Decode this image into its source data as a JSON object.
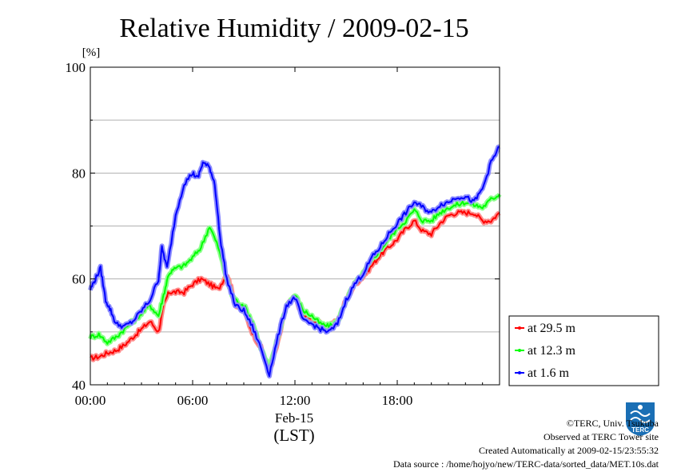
{
  "chart_data": {
    "type": "line",
    "title": "Relative Humidity / 2009-02-15",
    "ylabel": "[%]",
    "xlabel": "(LST)",
    "x_date_label": "Feb-15",
    "xlim": [
      0,
      24
    ],
    "ylim": [
      40,
      100
    ],
    "y_ticks": [
      40,
      60,
      80,
      100
    ],
    "y_tick_labels": [
      "40",
      "60",
      "80",
      "100"
    ],
    "x_ticks": [
      0,
      6,
      12,
      18
    ],
    "x_tick_labels": [
      "00:00",
      "06:00",
      "12:00",
      "18:00"
    ],
    "grid": "horizontal",
    "legend_position": "right",
    "series": [
      {
        "name": "at 29.5 m",
        "color": "#ff0000",
        "points": [
          [
            0,
            45
          ],
          [
            0.5,
            45.3
          ],
          [
            1,
            46
          ],
          [
            1.5,
            46.5
          ],
          [
            2,
            47.5
          ],
          [
            2.5,
            49
          ],
          [
            3,
            50.5
          ],
          [
            3.5,
            52
          ],
          [
            4,
            50
          ],
          [
            4.3,
            55
          ],
          [
            4.6,
            57.5
          ],
          [
            5,
            57.5
          ],
          [
            5.5,
            57.5
          ],
          [
            6,
            59
          ],
          [
            6.5,
            60
          ],
          [
            7,
            59
          ],
          [
            7.5,
            58
          ],
          [
            8,
            61
          ],
          [
            8.2,
            59
          ],
          [
            8.5,
            55
          ],
          [
            9,
            54
          ],
          [
            9.5,
            50
          ],
          [
            10,
            47
          ],
          [
            10.5,
            42.5
          ],
          [
            11,
            48
          ],
          [
            11.5,
            55
          ],
          [
            12,
            56.5
          ],
          [
            12.5,
            53
          ],
          [
            13,
            52.5
          ],
          [
            13.5,
            51.5
          ],
          [
            14,
            51
          ],
          [
            14.5,
            52
          ],
          [
            15,
            56
          ],
          [
            15.5,
            59
          ],
          [
            16,
            60.5
          ],
          [
            16.5,
            62.5
          ],
          [
            17,
            64.5
          ],
          [
            17.5,
            66
          ],
          [
            18,
            67.5
          ],
          [
            18.5,
            69.5
          ],
          [
            19,
            71
          ],
          [
            19.5,
            69
          ],
          [
            20,
            68.5
          ],
          [
            20.5,
            70.5
          ],
          [
            21,
            72
          ],
          [
            21.5,
            72.5
          ],
          [
            22,
            72.5
          ],
          [
            22.5,
            72.5
          ],
          [
            23,
            71
          ],
          [
            23.5,
            71
          ],
          [
            24,
            72.5
          ]
        ]
      },
      {
        "name": "at 12.3 m",
        "color": "#00ff00",
        "points": [
          [
            0,
            49
          ],
          [
            0.5,
            49.5
          ],
          [
            1,
            48
          ],
          [
            1.5,
            49
          ],
          [
            2,
            50.5
          ],
          [
            2.5,
            52
          ],
          [
            3,
            53.5
          ],
          [
            3.5,
            55
          ],
          [
            4,
            53
          ],
          [
            4.3,
            57
          ],
          [
            4.6,
            61
          ],
          [
            5,
            62
          ],
          [
            5.5,
            62.5
          ],
          [
            6,
            64
          ],
          [
            6.5,
            66
          ],
          [
            7,
            70
          ],
          [
            7.5,
            66
          ],
          [
            8,
            60
          ],
          [
            8.3,
            57
          ],
          [
            8.5,
            56
          ],
          [
            9,
            55
          ],
          [
            9.5,
            52
          ],
          [
            10,
            47
          ],
          [
            10.5,
            43
          ],
          [
            11,
            49
          ],
          [
            11.5,
            55
          ],
          [
            12,
            57
          ],
          [
            12.5,
            54
          ],
          [
            13,
            53
          ],
          [
            13.5,
            51.5
          ],
          [
            14,
            51
          ],
          [
            14.5,
            52
          ],
          [
            15,
            56
          ],
          [
            15.5,
            59
          ],
          [
            16,
            61
          ],
          [
            16.5,
            63.5
          ],
          [
            17,
            65.5
          ],
          [
            17.5,
            67.5
          ],
          [
            18,
            69.5
          ],
          [
            18.5,
            71
          ],
          [
            19,
            73
          ],
          [
            19.5,
            71
          ],
          [
            20,
            71
          ],
          [
            20.5,
            72.5
          ],
          [
            21,
            73.5
          ],
          [
            21.5,
            74
          ],
          [
            22,
            74.5
          ],
          [
            22.5,
            74
          ],
          [
            23,
            73.5
          ],
          [
            23.5,
            75
          ],
          [
            24,
            76
          ]
        ]
      },
      {
        "name": "at 1.6 m",
        "color": "#0000ff",
        "points": [
          [
            0,
            58
          ],
          [
            0.3,
            60
          ],
          [
            0.6,
            62
          ],
          [
            0.9,
            56
          ],
          [
            1.2,
            54
          ],
          [
            1.5,
            51.5
          ],
          [
            2,
            51
          ],
          [
            2.5,
            52
          ],
          [
            3,
            54
          ],
          [
            3.5,
            56
          ],
          [
            4,
            60
          ],
          [
            4.2,
            66
          ],
          [
            4.5,
            62
          ],
          [
            5,
            72
          ],
          [
            5.5,
            78
          ],
          [
            6,
            80
          ],
          [
            6.3,
            79
          ],
          [
            6.6,
            82
          ],
          [
            7,
            81
          ],
          [
            7.3,
            78
          ],
          [
            7.6,
            68
          ],
          [
            8,
            60
          ],
          [
            8.5,
            55
          ],
          [
            9,
            54
          ],
          [
            9.5,
            51
          ],
          [
            10,
            47
          ],
          [
            10.5,
            42
          ],
          [
            11,
            49
          ],
          [
            11.5,
            55
          ],
          [
            12,
            56.5
          ],
          [
            12.5,
            52
          ],
          [
            13,
            51.5
          ],
          [
            13.5,
            50.5
          ],
          [
            14,
            50
          ],
          [
            14.5,
            51.5
          ],
          [
            15,
            56
          ],
          [
            15.5,
            59
          ],
          [
            16,
            61
          ],
          [
            16.5,
            64
          ],
          [
            17,
            66
          ],
          [
            17.5,
            68.5
          ],
          [
            18,
            70.5
          ],
          [
            18.5,
            72.5
          ],
          [
            19,
            74.5
          ],
          [
            19.5,
            73.5
          ],
          [
            20,
            72.5
          ],
          [
            20.5,
            74
          ],
          [
            21,
            74.5
          ],
          [
            21.5,
            75.5
          ],
          [
            22,
            75.5
          ],
          [
            22.5,
            74.5
          ],
          [
            23,
            77
          ],
          [
            23.5,
            82
          ],
          [
            24,
            85
          ]
        ]
      }
    ]
  },
  "footer": {
    "copyright": "©TERC, Univ. Tsukuba",
    "observed": "Observed at TERC Tower site",
    "created": "Created Automatically at 2009-02-15/23:55:32",
    "source": "Data source : /home/hojyo/new/TERC-data/sorted_data/MET.10s.dat"
  },
  "logo": {
    "text": "TERC",
    "color": "#1a6fb5"
  }
}
